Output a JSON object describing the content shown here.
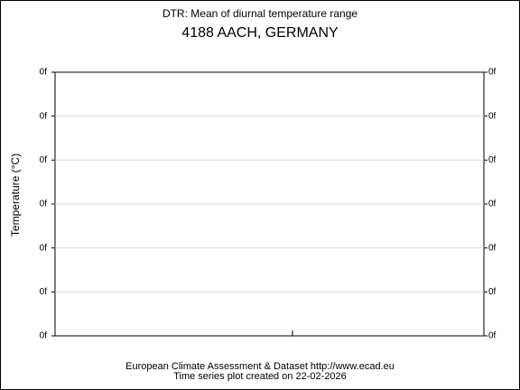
{
  "chart_data": {
    "type": "line",
    "title": "DTR: Mean of diurnal temperature range",
    "subtitle": "4188 AACH, GERMANY",
    "ylabel": "Temperature (°C)",
    "footer": [
      "European Climate Assessment & Dataset  http://www.ecad.eu",
      "Time series plot created on 22-02-2026"
    ],
    "ylim": [
      0,
      6
    ],
    "yticks": [
      {
        "value": 0,
        "label": "0f"
      },
      {
        "value": 1,
        "label": "0f"
      },
      {
        "value": 2,
        "label": "0f"
      },
      {
        "value": 3,
        "label": "0f"
      },
      {
        "value": 4,
        "label": "0f"
      },
      {
        "value": 5,
        "label": "0f"
      },
      {
        "value": 6,
        "label": "0f"
      }
    ],
    "y2lim": [
      0,
      6
    ],
    "y2ticks": [
      {
        "value": 0,
        "label": "0f"
      },
      {
        "value": 1,
        "label": "0f"
      },
      {
        "value": 2,
        "label": "0f"
      },
      {
        "value": 3,
        "label": "0f"
      },
      {
        "value": 4,
        "label": "0f"
      },
      {
        "value": 5,
        "label": "0f"
      },
      {
        "value": 6,
        "label": "0f"
      }
    ],
    "grid": true
  }
}
